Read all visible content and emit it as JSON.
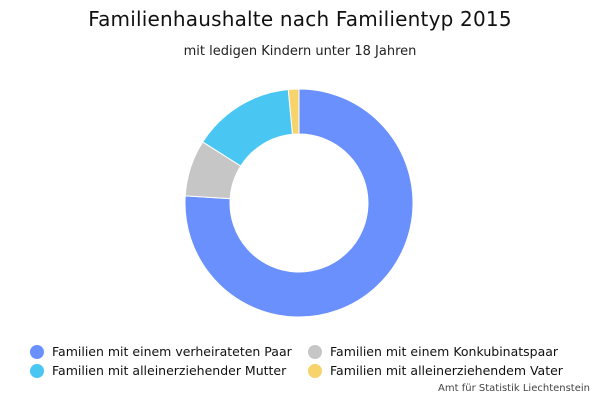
{
  "chart_data": {
    "type": "pie",
    "donut": true,
    "title": "Familienhaushalte nach Familientyp 2015",
    "subtitle": "mit ledigen Kindern unter 18 Jahren",
    "categories": [
      "Familien mit einem verheirateten Paar",
      "Familien mit einem Konkubinatspaar",
      "Familien mit alleinerziehender Mutter",
      "Familien mit alleinerziehendem Vater"
    ],
    "values": [
      76.0,
      8.0,
      14.5,
      1.5
    ],
    "colors": [
      "#6990fc",
      "#c6c6c6",
      "#4ac6f2",
      "#f7d36c"
    ],
    "legend_position": "bottom"
  },
  "source": "Amt für Statistik Liechtenstein"
}
